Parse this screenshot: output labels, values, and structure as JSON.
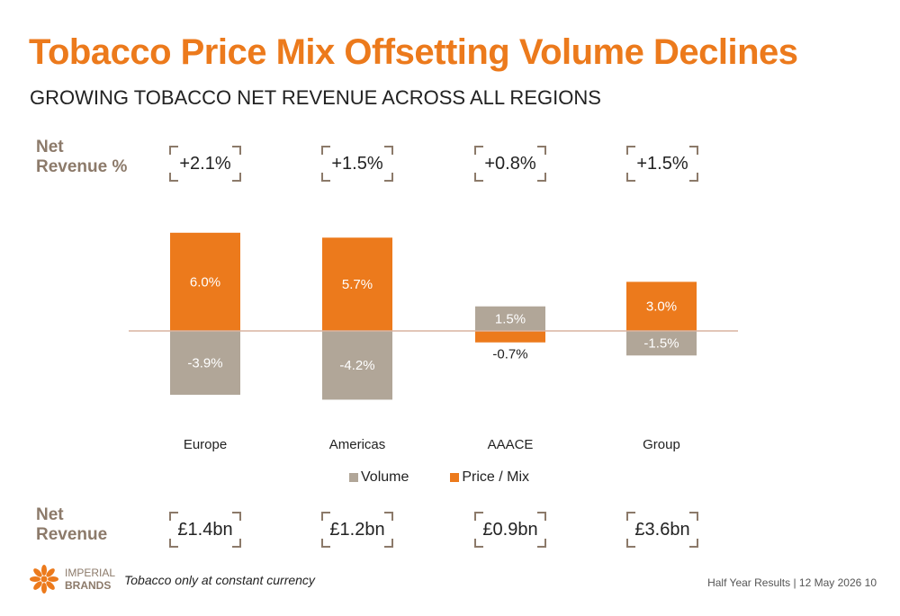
{
  "title": "Tobacco Price Mix Offsetting Volume Declines",
  "subtitle": "GROWING TOBACCO NET REVENUE ACROSS ALL REGIONS",
  "row_labels": {
    "net_revenue_pct": [
      "Net",
      "Revenue %"
    ],
    "net_revenue": [
      "Net",
      "Revenue"
    ]
  },
  "net_revenue_pct_values": [
    "+2.1%",
    "+1.5%",
    "+0.8%",
    "+1.5%"
  ],
  "net_revenue_values": [
    "£1.4bn",
    "£1.2bn",
    "£0.9bn",
    "£3.6bn"
  ],
  "colors": {
    "volume": "#b1a698",
    "price_mix": "#ec7a1c",
    "title": "#ec7a1c",
    "label_brown": "#8c7a6a"
  },
  "chart_data": {
    "type": "bar",
    "stacked": true,
    "categories": [
      "Europe",
      "Americas",
      "AAACE",
      "Group"
    ],
    "series": [
      {
        "name": "Volume",
        "values": [
          -3.9,
          -4.2,
          1.5,
          -1.5
        ],
        "labels": [
          "-3.9%",
          "-4.2%",
          "1.5%",
          "-1.5%"
        ]
      },
      {
        "name": "Price / Mix",
        "values": [
          6.0,
          5.7,
          -0.7,
          3.0
        ],
        "labels": [
          "6.0%",
          "5.7%",
          "-0.7%",
          "3.0%"
        ]
      }
    ],
    "legend_position": "bottom",
    "grid": false
  },
  "logo": {
    "line1": "IMPERIAL",
    "line2": "BRANDS"
  },
  "footnote": "Tobacco only at constant currency",
  "footer": "Half Year Results | 12 May 2026   10"
}
